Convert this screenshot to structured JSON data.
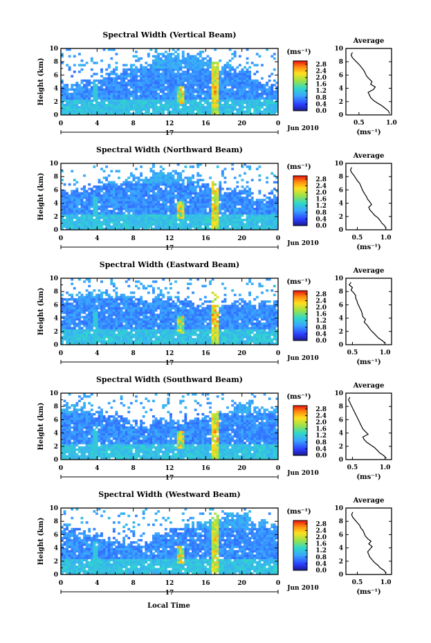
{
  "shared": {
    "ylabel": "Height (km)",
    "xlabel": "Local Time",
    "date_label": "Jun 2010",
    "day_label": "17",
    "unit_label": "(ms⁻¹)",
    "avg_title": "Average",
    "avg_xlabel": "(ms⁻¹)"
  },
  "chart_data": [
    {
      "type": "heatmap",
      "title": "Spectral Width (Vertical Beam)",
      "ylabel": "Height (km)",
      "xlabel": "",
      "xlim": [
        0,
        24
      ],
      "ylim": [
        0,
        10
      ],
      "xticks": [
        "0",
        "4",
        "8",
        "12",
        "16",
        "20",
        "0"
      ],
      "yticks": [
        "0",
        "2",
        "4",
        "6",
        "8",
        "10"
      ],
      "colorbar": {
        "ticks": [
          "0.0",
          "0.4",
          "0.8",
          "1.2",
          "1.6",
          "2.0",
          "2.4",
          "2.8"
        ],
        "range": [
          0,
          3.0
        ]
      },
      "average_profile": {
        "xlim": [
          0.3,
          1.0
        ],
        "xticks": [
          "0.5",
          "1.0"
        ],
        "yticks": [
          "0",
          "2",
          "4",
          "6",
          "8",
          "10"
        ],
        "height": [
          0.2,
          0.6,
          1.0,
          1.4,
          1.8,
          2.2,
          2.6,
          3.0,
          3.4,
          3.8,
          4.2,
          4.6,
          5.0,
          5.4,
          5.8,
          6.2,
          6.6,
          7.0,
          7.4,
          7.8,
          8.2,
          8.6,
          9.0,
          9.4
        ],
        "value": [
          0.97,
          0.95,
          0.9,
          0.85,
          0.78,
          0.72,
          0.68,
          0.66,
          0.64,
          0.72,
          0.75,
          0.68,
          0.7,
          0.66,
          0.62,
          0.6,
          0.58,
          0.55,
          0.52,
          0.48,
          0.44,
          0.4,
          0.38,
          0.4
        ]
      }
    },
    {
      "type": "heatmap",
      "title": "Spectral Width (Northward Beam)",
      "ylabel": "Height (km)",
      "xlabel": "",
      "xlim": [
        0,
        24
      ],
      "ylim": [
        0,
        10
      ],
      "xticks": [
        "0",
        "4",
        "8",
        "12",
        "16",
        "20",
        "0"
      ],
      "yticks": [
        "0",
        "2",
        "4",
        "6",
        "8",
        "10"
      ],
      "colorbar": {
        "ticks": [
          "0.0",
          "0.4",
          "0.8",
          "1.2",
          "1.6",
          "2.0",
          "2.4",
          "2.8"
        ],
        "range": [
          0,
          3.0
        ]
      },
      "average_profile": {
        "xlim": [
          0.3,
          1.1
        ],
        "xticks": [
          "0.5",
          "1.0"
        ],
        "yticks": [
          "0",
          "2",
          "4",
          "6",
          "8",
          "10"
        ],
        "height": [
          0.2,
          0.6,
          1.0,
          1.4,
          1.8,
          2.2,
          2.6,
          3.0,
          3.4,
          3.8,
          4.2,
          4.6,
          5.0,
          5.4,
          5.8,
          6.2,
          6.6,
          7.0,
          7.4,
          7.8,
          8.2,
          8.6,
          9.0,
          9.4
        ],
        "value": [
          1.0,
          0.98,
          0.93,
          0.9,
          0.86,
          0.8,
          0.76,
          0.72,
          0.7,
          0.75,
          0.72,
          0.68,
          0.66,
          0.63,
          0.6,
          0.58,
          0.56,
          0.54,
          0.5,
          0.47,
          0.44,
          0.4,
          0.38,
          0.4
        ]
      }
    },
    {
      "type": "heatmap",
      "title": "Spectral Width (Eastward Beam)",
      "ylabel": "Height (km)",
      "xlabel": "",
      "xlim": [
        0,
        24
      ],
      "ylim": [
        0,
        10
      ],
      "xticks": [
        "0",
        "4",
        "8",
        "12",
        "16",
        "20",
        "0"
      ],
      "yticks": [
        "0",
        "2",
        "4",
        "6",
        "8",
        "10"
      ],
      "colorbar": {
        "ticks": [
          "0.0",
          "0.4",
          "0.8",
          "1.2",
          "1.6",
          "2.0",
          "2.4",
          "2.8"
        ],
        "range": [
          0,
          3.0
        ]
      },
      "average_profile": {
        "xlim": [
          0.4,
          1.1
        ],
        "xticks": [
          "0.5",
          "1.0"
        ],
        "yticks": [
          "0",
          "2",
          "4",
          "6",
          "8",
          "10"
        ],
        "height": [
          0.2,
          0.6,
          1.0,
          1.4,
          1.8,
          2.2,
          2.6,
          3.0,
          3.4,
          3.8,
          4.2,
          4.6,
          5.0,
          5.4,
          5.8,
          6.2,
          6.6,
          7.0,
          7.4,
          7.8,
          8.2,
          8.6,
          9.0,
          9.4
        ],
        "value": [
          1.0,
          0.96,
          0.9,
          0.86,
          0.82,
          0.78,
          0.75,
          0.72,
          0.68,
          0.7,
          0.66,
          0.65,
          0.64,
          0.62,
          0.6,
          0.58,
          0.57,
          0.55,
          0.55,
          0.52,
          0.48,
          0.5,
          0.45,
          0.48
        ]
      }
    },
    {
      "type": "heatmap",
      "title": "Spectral Width (Southward Beam)",
      "ylabel": "Height (km)",
      "xlabel": "",
      "xlim": [
        0,
        24
      ],
      "ylim": [
        0,
        10
      ],
      "xticks": [
        "0",
        "4",
        "8",
        "12",
        "16",
        "20",
        "0"
      ],
      "yticks": [
        "0",
        "2",
        "4",
        "6",
        "8",
        "10"
      ],
      "colorbar": {
        "ticks": [
          "0.0",
          "0.4",
          "0.8",
          "1.2",
          "1.6",
          "2.0",
          "2.4",
          "2.8"
        ],
        "range": [
          0,
          3.0
        ]
      },
      "average_profile": {
        "xlim": [
          0.4,
          1.1
        ],
        "xticks": [
          "0.5",
          "1.0"
        ],
        "yticks": [
          "0",
          "2",
          "4",
          "6",
          "8",
          "10"
        ],
        "height": [
          0.2,
          0.6,
          1.0,
          1.4,
          1.8,
          2.2,
          2.6,
          3.0,
          3.4,
          3.8,
          4.2,
          4.6,
          5.0,
          5.4,
          5.8,
          6.2,
          6.6,
          7.0,
          7.4,
          7.8,
          8.2,
          8.6,
          9.0,
          9.4
        ],
        "value": [
          1.02,
          0.98,
          0.92,
          0.88,
          0.84,
          0.78,
          0.72,
          0.68,
          0.66,
          0.74,
          0.7,
          0.66,
          0.64,
          0.62,
          0.6,
          0.58,
          0.56,
          0.54,
          0.52,
          0.5,
          0.48,
          0.46,
          0.44,
          0.46
        ]
      }
    },
    {
      "type": "heatmap",
      "title": "Spectral Width (Westward Beam)",
      "ylabel": "Height (km)",
      "xlabel": "Local Time",
      "xlim": [
        0,
        24
      ],
      "ylim": [
        0,
        10
      ],
      "xticks": [
        "0",
        "4",
        "8",
        "12",
        "16",
        "20",
        "0"
      ],
      "yticks": [
        "0",
        "2",
        "4",
        "6",
        "8",
        "10"
      ],
      "colorbar": {
        "ticks": [
          "0.0",
          "0.4",
          "0.8",
          "1.2",
          "1.6",
          "2.0",
          "2.4",
          "2.8"
        ],
        "range": [
          0,
          3.0
        ]
      },
      "average_profile": {
        "xlim": [
          0.3,
          1.1
        ],
        "xticks": [
          "0.5",
          "1.0"
        ],
        "yticks": [
          "0",
          "2",
          "4",
          "6",
          "8",
          "10"
        ],
        "height": [
          0.2,
          0.6,
          1.0,
          1.4,
          1.8,
          2.2,
          2.6,
          3.0,
          3.4,
          3.8,
          4.2,
          4.6,
          5.0,
          5.4,
          5.8,
          6.2,
          6.6,
          7.0,
          7.4,
          7.8,
          8.2,
          8.6,
          9.0,
          9.4
        ],
        "value": [
          1.0,
          0.97,
          0.9,
          0.86,
          0.8,
          0.76,
          0.72,
          0.7,
          0.68,
          0.72,
          0.76,
          0.7,
          0.74,
          0.68,
          0.64,
          0.62,
          0.6,
          0.56,
          0.54,
          0.5,
          0.46,
          0.42,
          0.4,
          0.42
        ]
      }
    }
  ]
}
